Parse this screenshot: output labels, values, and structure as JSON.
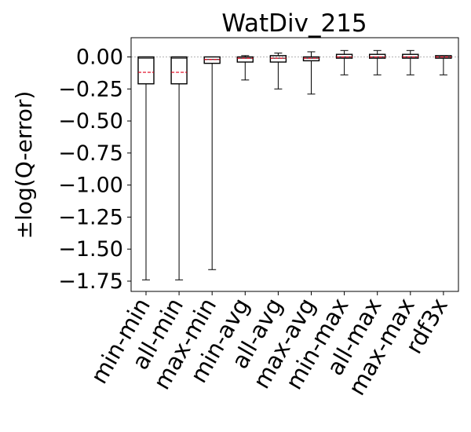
{
  "chart_data": {
    "type": "box",
    "title": "WatDiv_215",
    "xlabel": "",
    "ylabel": "±log(Q-error)",
    "ylim": [
      -1.83,
      0.15
    ],
    "yticks": [
      0.0,
      -0.25,
      -0.5,
      -0.75,
      -1.0,
      -1.25,
      -1.5,
      -1.75
    ],
    "ytick_labels": [
      "0.00",
      "−0.25",
      "−0.50",
      "−0.75",
      "−1.00",
      "−1.25",
      "−1.50",
      "−1.75"
    ],
    "reference_line": 0.0,
    "grid": false,
    "categories": [
      "min-min",
      "all-min",
      "max-min",
      "min-avg",
      "all-avg",
      "max-avg",
      "min-max",
      "all-max",
      "max-max",
      "rdf3x"
    ],
    "boxes": [
      {
        "whisker_low": -1.74,
        "q1": -0.21,
        "median": -0.01,
        "mean": -0.12,
        "q3": 0.0,
        "whisker_high": 0.0
      },
      {
        "whisker_low": -1.74,
        "q1": -0.21,
        "median": -0.01,
        "mean": -0.12,
        "q3": 0.0,
        "whisker_high": 0.0
      },
      {
        "whisker_low": -1.66,
        "q1": -0.05,
        "median": -0.02,
        "mean": -0.02,
        "q3": 0.0,
        "whisker_high": 0.0
      },
      {
        "whisker_low": -0.18,
        "q1": -0.04,
        "median": -0.01,
        "mean": -0.01,
        "q3": 0.0,
        "whisker_high": 0.01
      },
      {
        "whisker_low": -0.25,
        "q1": -0.04,
        "median": -0.01,
        "mean": -0.01,
        "q3": 0.01,
        "whisker_high": 0.03
      },
      {
        "whisker_low": -0.29,
        "q1": -0.03,
        "median": -0.01,
        "mean": -0.01,
        "q3": 0.0,
        "whisker_high": 0.04
      },
      {
        "whisker_low": -0.14,
        "q1": -0.01,
        "median": 0.0,
        "mean": 0.0,
        "q3": 0.02,
        "whisker_high": 0.05
      },
      {
        "whisker_low": -0.14,
        "q1": -0.01,
        "median": 0.0,
        "mean": 0.0,
        "q3": 0.02,
        "whisker_high": 0.05
      },
      {
        "whisker_low": -0.14,
        "q1": -0.01,
        "median": 0.0,
        "mean": 0.0,
        "q3": 0.02,
        "whisker_high": 0.05
      },
      {
        "whisker_low": -0.14,
        "q1": -0.01,
        "median": 0.0,
        "mean": 0.0,
        "q3": 0.01,
        "whisker_high": 0.01
      }
    ],
    "colors": {
      "box": "#000000",
      "mean_line": "#e0001b",
      "reference_line": "#999999"
    }
  }
}
